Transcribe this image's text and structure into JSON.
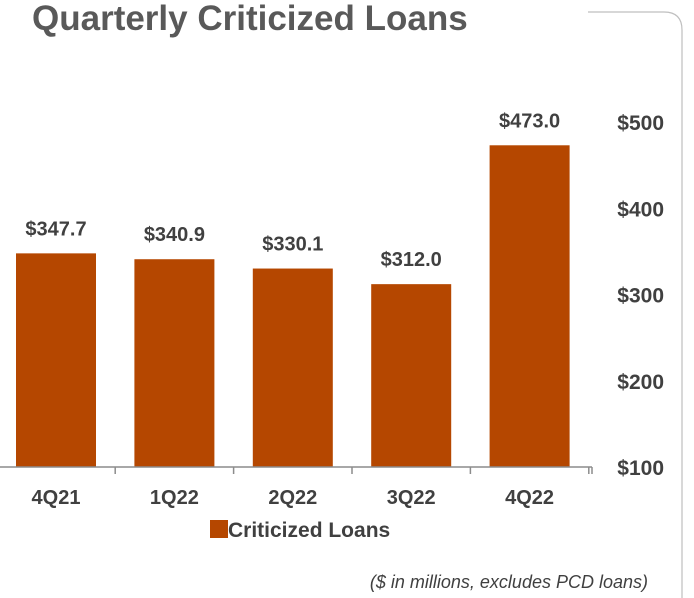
{
  "colors": {
    "bar": "#B54700",
    "axis": "#8C8C8C",
    "text": "#404040",
    "title": "#595959"
  },
  "chart_data": {
    "type": "bar",
    "title": "Quarterly Criticized Loans",
    "categories": [
      "4Q21",
      "1Q22",
      "2Q22",
      "3Q22",
      "4Q22"
    ],
    "series": [
      {
        "name": "Criticized Loans",
        "values": [
          347.7,
          340.9,
          330.1,
          312.0,
          473.0
        ]
      }
    ],
    "data_labels": [
      "$347.7",
      "$340.9",
      "$330.1",
      "$312.0",
      "$473.0"
    ],
    "yticks": [
      100,
      200,
      300,
      400,
      500
    ],
    "ytick_labels": [
      "$100",
      "$200",
      "$300",
      "$400",
      "$500"
    ],
    "ylim": [
      100,
      500
    ],
    "y_axis_side": "right",
    "grid": false,
    "legend_position": "bottom",
    "note": "($ in millions, excludes PCD loans)"
  }
}
